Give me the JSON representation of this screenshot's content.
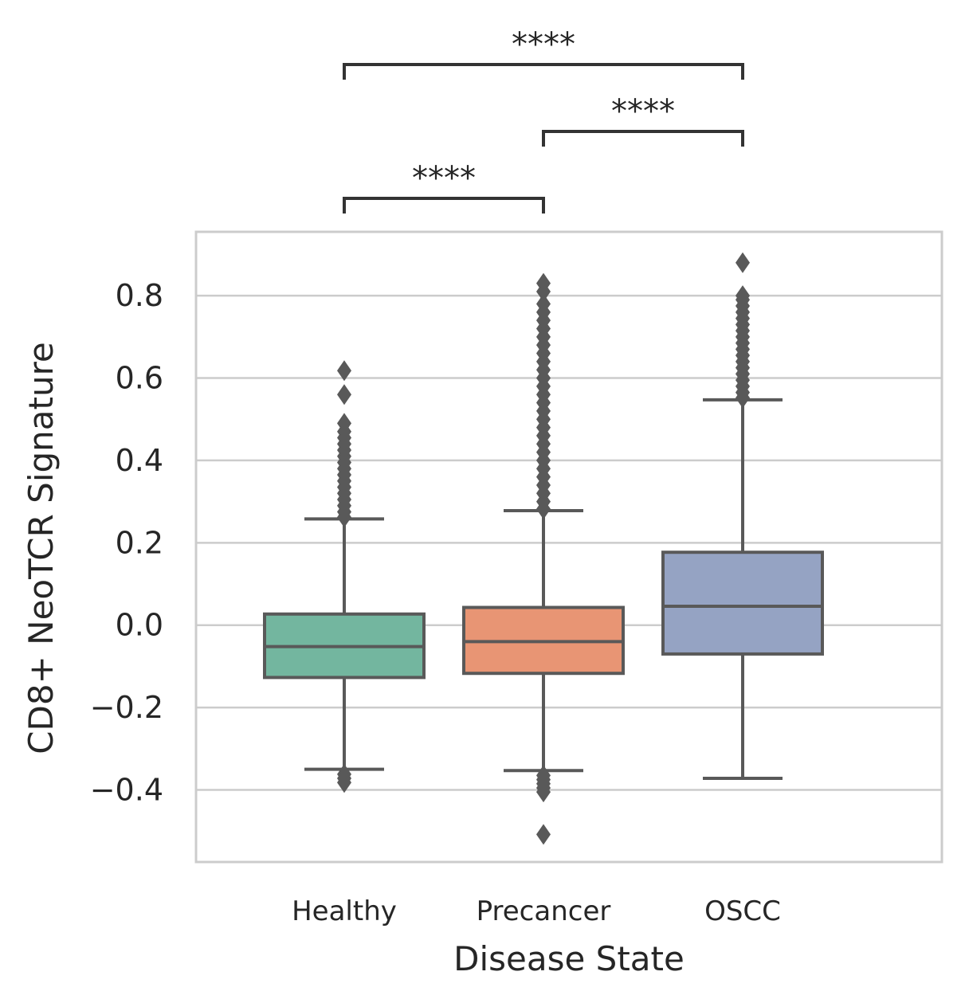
{
  "chart_data": {
    "type": "box",
    "xlabel": "Disease State",
    "ylabel": "CD8+ NeoTCR Signature",
    "ylim": [
      -0.575,
      0.955
    ],
    "yticks": [
      -0.4,
      -0.2,
      0.0,
      0.2,
      0.4,
      0.6,
      0.8
    ],
    "ytick_labels": [
      "−0.4",
      "−0.2",
      "0.0",
      "0.2",
      "0.4",
      "0.6",
      "0.8"
    ],
    "grid": "horizontal",
    "categories": [
      "Healthy",
      "Precancer",
      "OSCC"
    ],
    "boxes": [
      {
        "name": "Healthy",
        "color": "#73b69f",
        "whisker_low": -0.35,
        "q1": -0.127,
        "median": -0.052,
        "q3": 0.027,
        "whisker_high": 0.258,
        "outliers": [
          -0.362,
          -0.372,
          -0.382,
          0.262,
          0.275,
          0.29,
          0.305,
          0.32,
          0.335,
          0.35,
          0.365,
          0.38,
          0.395,
          0.41,
          0.425,
          0.44,
          0.455,
          0.47,
          0.49,
          0.56,
          0.618
        ]
      },
      {
        "name": "Precancer",
        "color": "#e89574",
        "whisker_low": -0.353,
        "q1": -0.117,
        "median": -0.04,
        "q3": 0.043,
        "whisker_high": 0.278,
        "outliers": [
          -0.365,
          -0.375,
          -0.385,
          -0.395,
          -0.405,
          -0.508,
          0.282,
          0.3,
          0.32,
          0.34,
          0.36,
          0.38,
          0.4,
          0.42,
          0.44,
          0.46,
          0.48,
          0.5,
          0.52,
          0.54,
          0.56,
          0.58,
          0.6,
          0.62,
          0.64,
          0.66,
          0.68,
          0.7,
          0.72,
          0.74,
          0.76,
          0.78,
          0.81,
          0.83
        ]
      },
      {
        "name": "OSCC",
        "color": "#95a3c3",
        "whisker_low": -0.372,
        "q1": -0.07,
        "median": 0.046,
        "q3": 0.177,
        "whisker_high": 0.547,
        "outliers": [
          0.552,
          0.565,
          0.58,
          0.595,
          0.61,
          0.625,
          0.64,
          0.655,
          0.67,
          0.685,
          0.7,
          0.715,
          0.73,
          0.745,
          0.76,
          0.775,
          0.79,
          0.8,
          0.88
        ]
      }
    ],
    "comparisons": [
      {
        "from": "Healthy",
        "to": "Precancer",
        "label": "****"
      },
      {
        "from": "Precancer",
        "to": "OSCC",
        "label": "****"
      },
      {
        "from": "Healthy",
        "to": "OSCC",
        "label": "****"
      }
    ]
  }
}
